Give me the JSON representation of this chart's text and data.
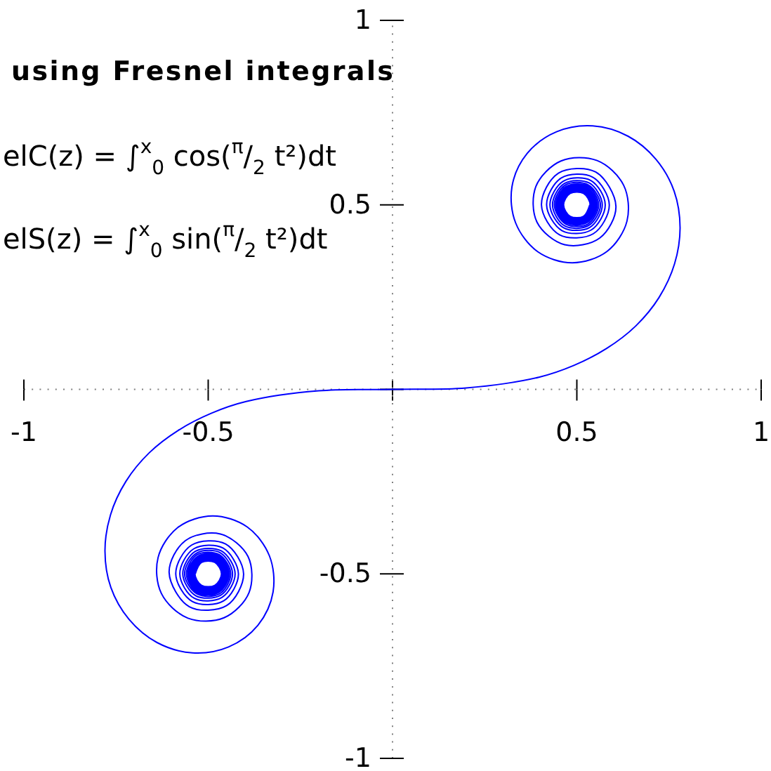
{
  "chart_data": {
    "type": "line",
    "title": "using Fresnel integrals",
    "annotations": [
      "elC(z) = ∫$^{x}$$_{0}$ cos($^{π}$/$_{2}$ t²)dt",
      "elS(z) = ∫$^{x}$$_{0}$ sin($^{π}$/$_{2}$ t²)dt"
    ],
    "series": [
      {
        "color": "#0000ff",
        "x": [
          -0.535,
          -0.518,
          -0.482,
          -0.464,
          -0.482,
          -0.518,
          -0.536,
          -0.518,
          -0.482,
          -0.463,
          -0.482,
          -0.519,
          -0.537,
          -0.519,
          -0.481,
          -0.462,
          -0.481,
          -0.519,
          -0.538,
          -0.519,
          -0.481,
          -0.461,
          -0.48,
          -0.52,
          -0.539,
          -0.52,
          -0.48,
          -0.46,
          -0.48,
          -0.52,
          -0.541,
          -0.52,
          -0.479,
          -0.459,
          -0.479,
          -0.521,
          -0.542,
          -0.521,
          -0.479,
          -0.457,
          -0.478,
          -0.522,
          -0.544,
          -0.522,
          -0.478,
          -0.455,
          -0.478,
          -0.523,
          -0.545,
          -0.523,
          -0.477,
          -0.454,
          -0.477,
          -0.524,
          -0.547,
          -0.524,
          -0.476,
          -0.451,
          -0.476,
          -0.525,
          -0.55,
          -0.525,
          -0.475,
          -0.449,
          -0.474,
          -0.526,
          -0.552,
          -0.526,
          -0.473,
          -0.446,
          -0.473,
          -0.527,
          -0.555,
          -0.528,
          -0.472,
          -0.443,
          -0.471,
          -0.529,
          -0.559,
          -0.53,
          -0.47,
          -0.439,
          -0.469,
          -0.531,
          -0.564,
          -0.532,
          -0.467,
          -0.434,
          -0.466,
          -0.534,
          -0.569,
          -0.535,
          -0.464,
          -0.427,
          -0.463,
          -0.538,
          -0.577,
          -0.539,
          -0.46,
          -0.418,
          -0.458,
          -0.543,
          -0.588,
          -0.545,
          -0.453,
          -0.404,
          -0.45,
          -0.551,
          -0.606,
          -0.562,
          -0.467,
          -0.392,
          -0.389,
          -0.457,
          -0.555,
          -0.627,
          -0.636,
          -0.582,
          -0.488,
          -0.394,
          -0.334,
          -0.324,
          -0.365,
          -0.445,
          -0.543,
          -0.639,
          -0.715,
          -0.764,
          -0.78,
          -0.765,
          -0.723,
          -0.66,
          -0.581,
          -0.492,
          -0.397,
          -0.2,
          0,
          0.2,
          0.397,
          0.492,
          0.581,
          0.66,
          0.723,
          0.765,
          0.78,
          0.764,
          0.715,
          0.639,
          0.543,
          0.445,
          0.365,
          0.324,
          0.334,
          0.394,
          0.488,
          0.582,
          0.636,
          0.627,
          0.555,
          0.457,
          0.389,
          0.392,
          0.467,
          0.562,
          0.606,
          0.551,
          0.45,
          0.404,
          0.453,
          0.545,
          0.588,
          0.543,
          0.458,
          0.418,
          0.46,
          0.539,
          0.577,
          0.538,
          0.463,
          0.427,
          0.464,
          0.535,
          0.569,
          0.534,
          0.466,
          0.434,
          0.467,
          0.532,
          0.564,
          0.531,
          0.469,
          0.439,
          0.47,
          0.53,
          0.559,
          0.529,
          0.471,
          0.443,
          0.472,
          0.528,
          0.555,
          0.527,
          0.473,
          0.446,
          0.473,
          0.526,
          0.552,
          0.526,
          0.474,
          0.449,
          0.475,
          0.525,
          0.55,
          0.525,
          0.476,
          0.451,
          0.476,
          0.524,
          0.547,
          0.524,
          0.477,
          0.454,
          0.477,
          0.523,
          0.545,
          0.523,
          0.478,
          0.455,
          0.478,
          0.522,
          0.544,
          0.522,
          0.478,
          0.457,
          0.479,
          0.521,
          0.542,
          0.521,
          0.479,
          0.459,
          0.479,
          0.52,
          0.541,
          0.52,
          0.48,
          0.46,
          0.48,
          0.52,
          0.539,
          0.52,
          0.48,
          0.461,
          0.481,
          0.519,
          0.538,
          0.519,
          0.481,
          0.462,
          0.481,
          0.519,
          0.537,
          0.519,
          0.482,
          0.463,
          0.482,
          0.518,
          0.536,
          0.518,
          0.482,
          0.464,
          0.482,
          0.518,
          0.535
        ],
        "values": [
          -0.5,
          -0.469,
          -0.469,
          -0.5,
          -0.531,
          -0.531,
          -0.5,
          -0.468,
          -0.468,
          -0.5,
          -0.532,
          -0.532,
          -0.5,
          -0.468,
          -0.467,
          -0.5,
          -0.533,
          -0.533,
          -0.5,
          -0.467,
          -0.466,
          -0.5,
          -0.534,
          -0.534,
          -0.5,
          -0.466,
          -0.465,
          -0.5,
          -0.535,
          -0.535,
          -0.5,
          -0.465,
          -0.464,
          -0.5,
          -0.536,
          -0.536,
          -0.5,
          -0.463,
          -0.463,
          -0.5,
          -0.537,
          -0.538,
          -0.5,
          -0.462,
          -0.462,
          -0.5,
          -0.539,
          -0.539,
          -0.5,
          -0.46,
          -0.46,
          -0.5,
          -0.54,
          -0.541,
          -0.5,
          -0.459,
          -0.458,
          -0.5,
          -0.542,
          -0.543,
          -0.5,
          -0.457,
          -0.456,
          -0.5,
          -0.545,
          -0.545,
          -0.5,
          -0.454,
          -0.454,
          -0.5,
          -0.547,
          -0.548,
          -0.5,
          -0.452,
          -0.451,
          -0.5,
          -0.55,
          -0.551,
          -0.5,
          -0.448,
          -0.448,
          -0.5,
          -0.554,
          -0.554,
          -0.5,
          -0.444,
          -0.443,
          -0.5,
          -0.558,
          -0.559,
          -0.5,
          -0.439,
          -0.438,
          -0.5,
          -0.564,
          -0.566,
          -0.5,
          -0.432,
          -0.43,
          -0.5,
          -0.573,
          -0.575,
          -0.5,
          -0.422,
          -0.419,
          -0.5,
          -0.586,
          -0.589,
          -0.496,
          -0.41,
          -0.392,
          -0.453,
          -0.55,
          -0.619,
          -0.62,
          -0.553,
          -0.456,
          -0.374,
          -0.343,
          -0.373,
          -0.451,
          -0.549,
          -0.639,
          -0.698,
          -0.714,
          -0.686,
          -0.623,
          -0.537,
          -0.438,
          -0.34,
          -0.249,
          -0.172,
          -0.111,
          -0.065,
          -0.033,
          -0.004,
          0,
          0.004,
          0.033,
          0.065,
          0.111,
          0.172,
          0.249,
          0.34,
          0.438,
          0.537,
          0.623,
          0.686,
          0.714,
          0.698,
          0.639,
          0.549,
          0.451,
          0.373,
          0.343,
          0.374,
          0.456,
          0.553,
          0.62,
          0.619,
          0.55,
          0.453,
          0.392,
          0.41,
          0.496,
          0.589,
          0.586,
          0.5,
          0.419,
          0.422,
          0.5,
          0.575,
          0.573,
          0.5,
          0.43,
          0.432,
          0.5,
          0.566,
          0.564,
          0.5,
          0.438,
          0.439,
          0.5,
          0.559,
          0.558,
          0.5,
          0.443,
          0.444,
          0.5,
          0.554,
          0.554,
          0.5,
          0.448,
          0.448,
          0.5,
          0.551,
          0.55,
          0.5,
          0.451,
          0.452,
          0.5,
          0.548,
          0.547,
          0.5,
          0.454,
          0.454,
          0.5,
          0.545,
          0.545,
          0.5,
          0.456,
          0.457,
          0.5,
          0.543,
          0.542,
          0.5,
          0.458,
          0.459,
          0.5,
          0.541,
          0.54,
          0.5,
          0.46,
          0.46,
          0.5,
          0.539,
          0.539,
          0.5,
          0.462,
          0.462,
          0.5,
          0.538,
          0.537,
          0.5,
          0.463,
          0.463,
          0.5,
          0.536,
          0.536,
          0.5,
          0.464,
          0.465,
          0.5,
          0.535,
          0.535,
          0.5,
          0.465,
          0.466,
          0.5,
          0.534,
          0.534,
          0.5,
          0.466,
          0.467,
          0.5,
          0.533,
          0.533,
          0.5,
          0.467,
          0.468,
          0.5,
          0.532,
          0.532,
          0.5,
          0.468,
          0.468,
          0.5,
          0.531,
          0.531,
          0.5,
          0.469,
          0.469,
          0.5
        ]
      }
    ],
    "xlim": [
      -1,
      1
    ],
    "ylim": [
      -1,
      1
    ],
    "xticks": [
      -1,
      -0.5,
      {
        "value": 0,
        "label": null
      },
      0.5,
      1
    ],
    "yticks": [
      -1,
      -0.5,
      {
        "value": 0,
        "label": null
      },
      0.5,
      1
    ]
  }
}
